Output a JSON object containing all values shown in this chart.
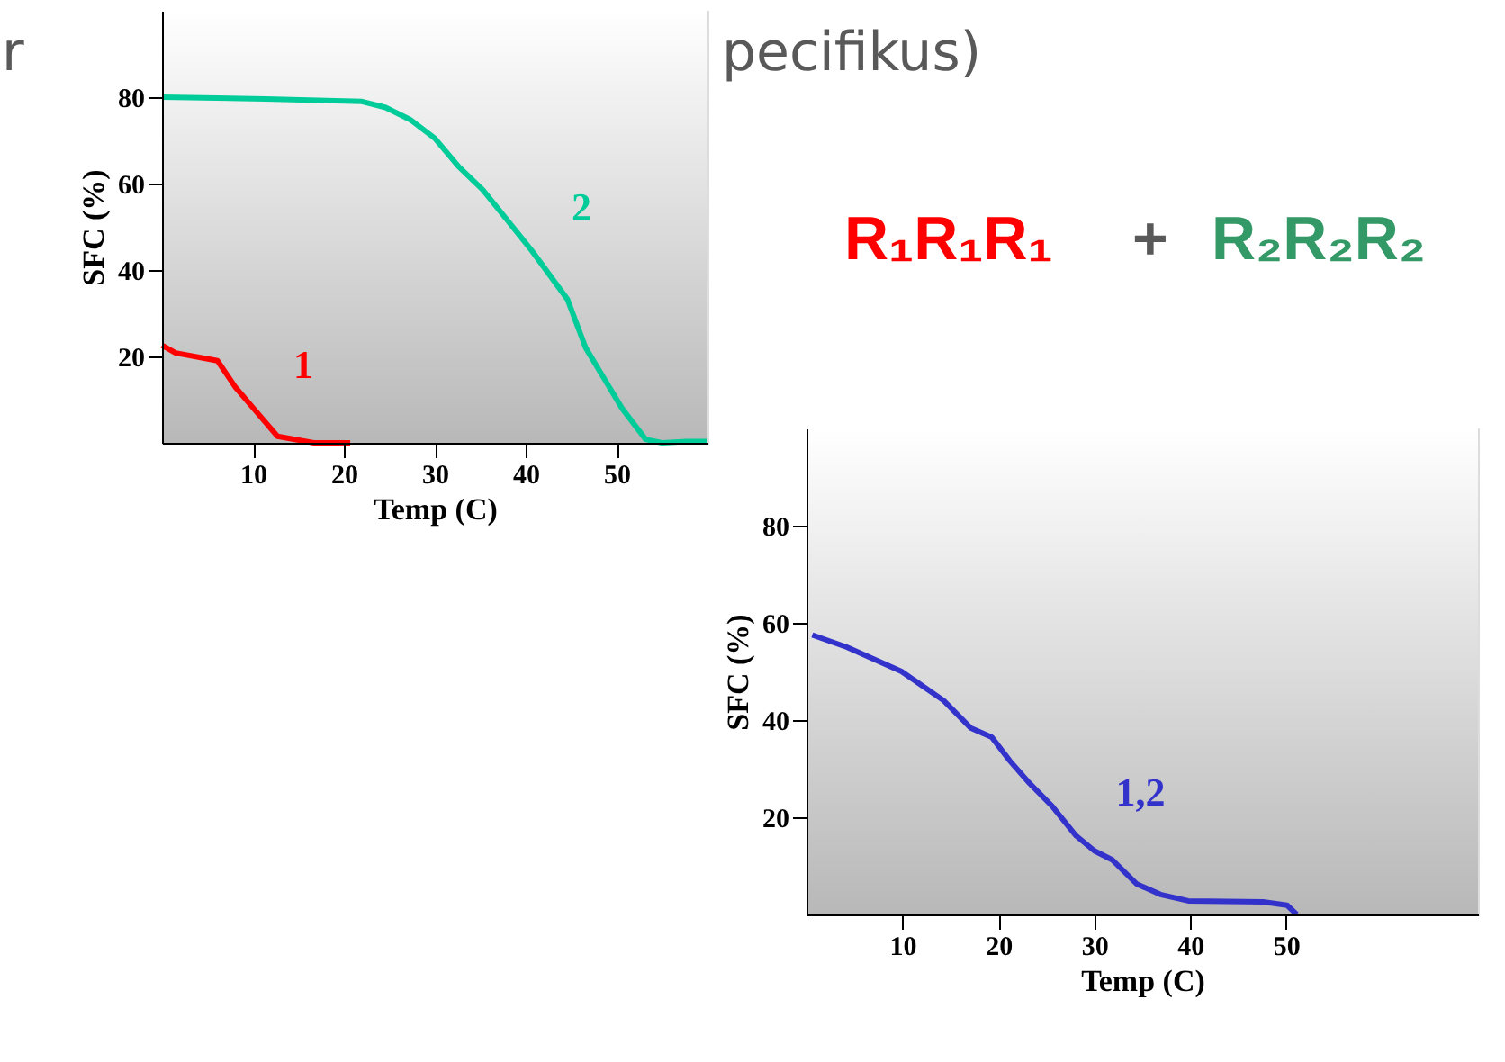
{
  "chart_data": [
    {
      "type": "line",
      "xlabel": "Temp (C)",
      "ylabel": "SFC (%)",
      "xlim": [
        0,
        60
      ],
      "ylim": [
        0,
        100
      ],
      "xticks": [
        10,
        20,
        30,
        40,
        50
      ],
      "yticks": [
        20,
        40,
        60,
        80
      ],
      "grid": false,
      "legend": false,
      "series": [
        {
          "name": "1",
          "color": "#ff0000",
          "x": [
            0,
            1.5,
            6.1,
            8.1,
            10.1,
            12.7,
            16.7,
            20.7
          ],
          "values": [
            22.6,
            20.8,
            19,
            12.8,
            7.9,
            1.5,
            0,
            0
          ]
        },
        {
          "name": "2",
          "color": "#00cc99",
          "x": [
            0,
            11.4,
            22,
            24.6,
            27.3,
            30,
            32.6,
            35.3,
            38,
            40.7,
            44.6,
            46.6,
            48.6,
            50.6,
            53.2,
            55,
            57.7,
            60
          ],
          "values": [
            80,
            79.6,
            79,
            77.6,
            74.8,
            70.5,
            64,
            58.5,
            51.5,
            44.4,
            33.2,
            22,
            15,
            8,
            0.8,
            0,
            0.3,
            0.3
          ]
        }
      ],
      "annotations": [
        "r",
        "pecifikus)",
        "R₁R₁R₁",
        "+",
        "R₂R₂R₂"
      ]
    },
    {
      "type": "line",
      "xlabel": "Temp (C)",
      "ylabel": "SFC (%)",
      "xlim": [
        0,
        70
      ],
      "ylim": [
        0,
        100
      ],
      "xticks": [
        10,
        20,
        30,
        40,
        50
      ],
      "yticks": [
        20,
        40,
        60,
        80
      ],
      "grid": false,
      "legend": false,
      "series": [
        {
          "name": "1,2",
          "color": "#3333cc",
          "x": [
            0.6,
            4.2,
            9.9,
            14.3,
            17.1,
            19.3,
            21.2,
            23.1,
            25.6,
            28.1,
            30,
            31.9,
            34.4,
            36.9,
            39.8,
            47.6,
            50.1,
            51.1
          ],
          "values": [
            57.5,
            55,
            50,
            44,
            38.4,
            36.5,
            31.6,
            27.3,
            22.3,
            16.2,
            13.1,
            11.2,
            6.3,
            4.1,
            2.8,
            2.6,
            1.9,
            0
          ]
        }
      ]
    }
  ]
}
